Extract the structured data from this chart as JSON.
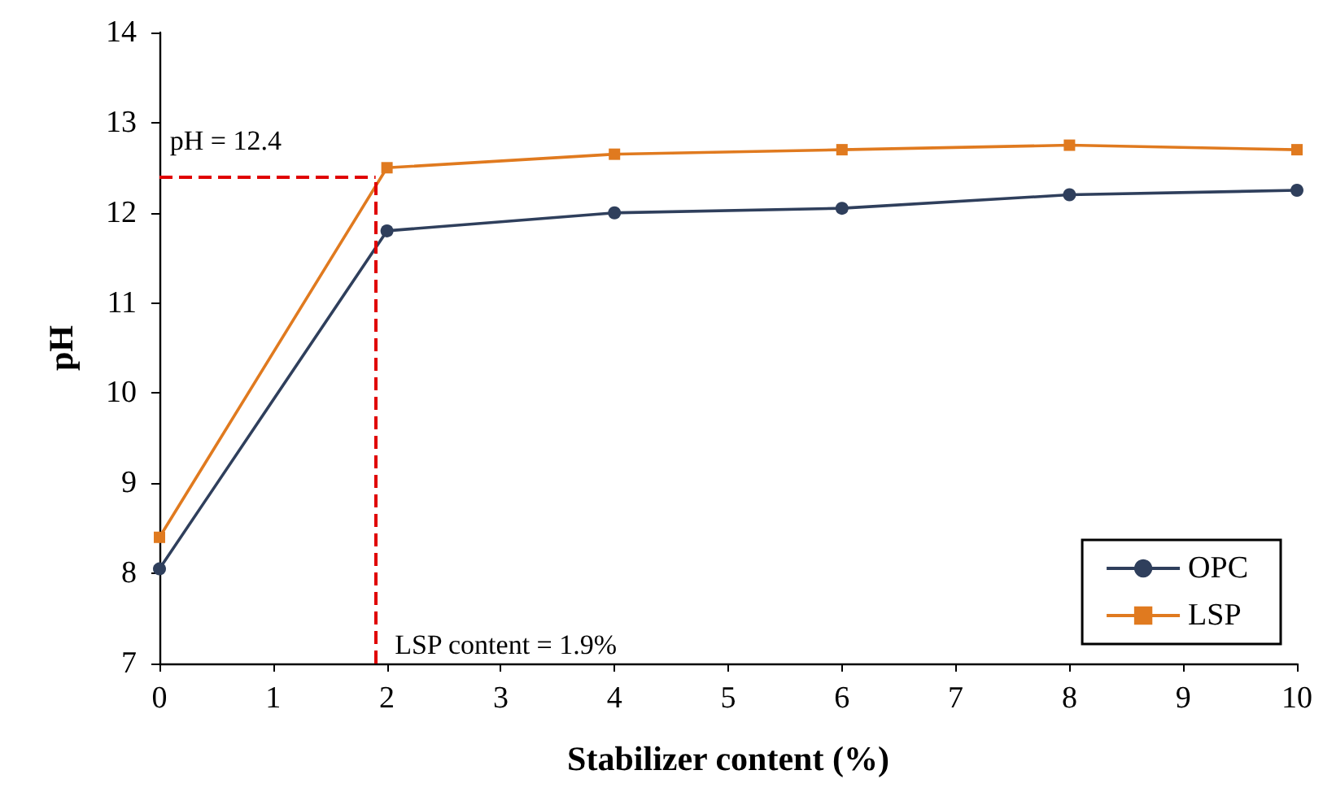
{
  "chart_data": {
    "type": "line",
    "xlabel": "Stabilizer content (%)",
    "ylabel": "pH",
    "x": [
      0,
      2,
      4,
      6,
      8,
      10
    ],
    "series": [
      {
        "name": "OPC",
        "color": "#2f3f5c",
        "marker": "circle",
        "values": [
          8.05,
          11.8,
          12.0,
          12.05,
          12.2,
          12.25
        ]
      },
      {
        "name": "LSP",
        "color": "#e07a1f",
        "marker": "square",
        "values": [
          8.4,
          12.5,
          12.65,
          12.7,
          12.75,
          12.7
        ]
      }
    ],
    "xlim": [
      0,
      10
    ],
    "xticks": [
      0,
      1,
      2,
      3,
      4,
      5,
      6,
      7,
      8,
      9,
      10
    ],
    "ylim": [
      7,
      14
    ],
    "yticks": [
      7,
      8,
      9,
      10,
      11,
      12,
      13,
      14
    ],
    "ref_lines": [
      {
        "axis": "y",
        "value": 12.4,
        "label": "pH = 12.4",
        "color": "#e00000",
        "line_style": "dashed"
      },
      {
        "axis": "x",
        "value": 1.9,
        "label": "LSP content = 1.9%",
        "color": "#e00000",
        "line_style": "dashed"
      }
    ],
    "grid": false,
    "legend": "bottom right"
  }
}
